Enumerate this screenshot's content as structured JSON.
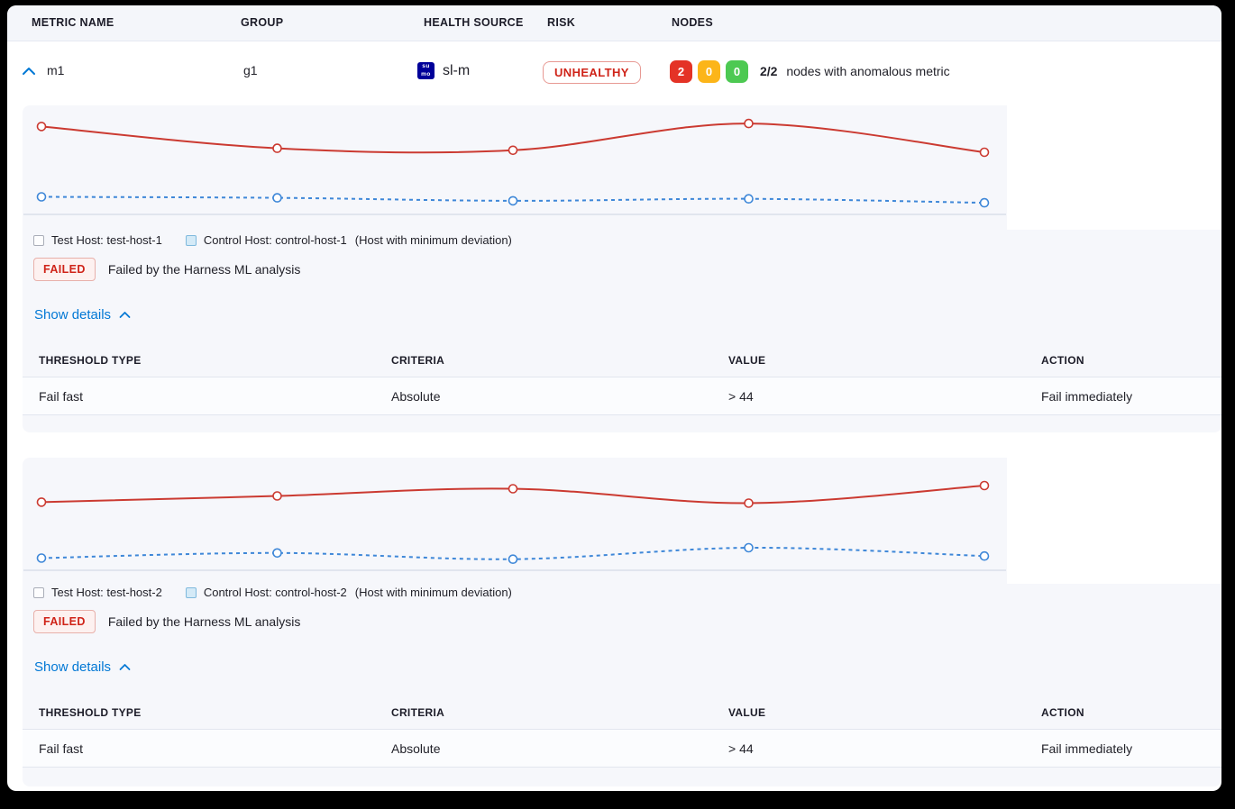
{
  "header": {
    "columns": [
      "METRIC NAME",
      "GROUP",
      "HEALTH SOURCE",
      "RISK",
      "NODES"
    ]
  },
  "metric_row": {
    "name": "m1",
    "group": "g1",
    "health_source": "sl-m",
    "health_source_icon": "sumologic-icon",
    "health_source_icon_text_top": "su",
    "health_source_icon_text_bottom": "mo",
    "risk_label": "UNHEALTHY",
    "nodes": {
      "unhealthy_count": "2",
      "warning_count": "0",
      "healthy_count": "0",
      "summary_strong": "2/2",
      "summary_text": "nodes with anomalous metric"
    }
  },
  "colors": {
    "accent_blue": "#0278d5",
    "risk_text_red": "#cf2318",
    "node_red": "#e43326",
    "node_yellow": "#fcb519",
    "node_green": "#4dc952",
    "chart_red": "#cb3a31",
    "chart_blue": "#3e87d8",
    "card_bg": "#f6f7fb"
  },
  "sections": [
    {
      "legend": {
        "test_label": "Test Host: test-host-1",
        "control_label": "Control Host: control-host-1",
        "control_note": "(Host with minimum deviation)"
      },
      "status": {
        "badge": "FAILED",
        "message": "Failed by the Harness ML analysis"
      },
      "details_toggle": "Show details",
      "table": {
        "headers": [
          "THRESHOLD TYPE",
          "CRITERIA",
          "VALUE",
          "ACTION"
        ],
        "rows": [
          [
            "Fail fast",
            "Absolute",
            "> 44",
            "Fail immediately"
          ]
        ]
      }
    },
    {
      "legend": {
        "test_label": "Test Host: test-host-2",
        "control_label": "Control Host: control-host-2",
        "control_note": "(Host with minimum deviation)"
      },
      "status": {
        "badge": "FAILED",
        "message": "Failed by the Harness ML analysis"
      },
      "details_toggle": "Show details",
      "table": {
        "headers": [
          "THRESHOLD TYPE",
          "CRITERIA",
          "VALUE",
          "ACTION"
        ],
        "rows": [
          [
            "Fail fast",
            "Absolute",
            "> 44",
            "Fail immediately"
          ]
        ]
      }
    }
  ],
  "chart_data": [
    {
      "type": "line",
      "x": [
        1,
        2,
        3,
        4,
        5
      ],
      "series": [
        {
          "name": "Test Host: test-host-1",
          "style": "solid",
          "color": "#cb3a31",
          "values": [
            86,
            64,
            62,
            89,
            60
          ]
        },
        {
          "name": "Control Host: control-host-1",
          "style": "dashed",
          "color": "#3e87d8",
          "values": [
            15,
            14,
            11,
            13,
            9
          ]
        }
      ],
      "title": "",
      "xlabel": "",
      "ylabel": "",
      "ylim": [
        0,
        100
      ],
      "axes_hidden": true,
      "grid": false,
      "legend_position": "bottom"
    },
    {
      "type": "line",
      "x": [
        1,
        2,
        3,
        4,
        5
      ],
      "series": [
        {
          "name": "Test Host: test-host-2",
          "style": "solid",
          "color": "#cb3a31",
          "values": [
            64,
            70,
            77,
            63,
            80
          ]
        },
        {
          "name": "Control Host: control-host-2",
          "style": "dashed",
          "color": "#3e87d8",
          "values": [
            10,
            15,
            9,
            20,
            12
          ]
        }
      ],
      "title": "",
      "xlabel": "",
      "ylabel": "",
      "ylim": [
        0,
        100
      ],
      "axes_hidden": true,
      "grid": false,
      "legend_position": "bottom"
    }
  ]
}
